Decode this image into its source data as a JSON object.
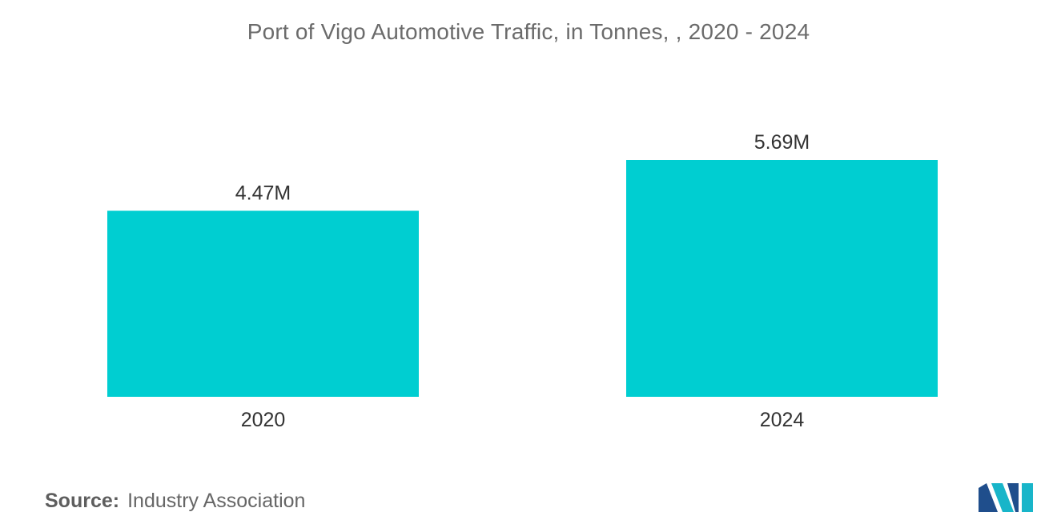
{
  "chart_data": {
    "type": "bar",
    "title": "Port of Vigo Automotive Traffic, in Tonnes, , 2020 - 2024",
    "categories": [
      "2020",
      "2024"
    ],
    "values": [
      4.47,
      5.69
    ],
    "value_labels": [
      "4.47M",
      "5.69M"
    ],
    "unit": "M",
    "xlabel": "",
    "ylabel": "",
    "ylim": [
      0,
      5.69
    ],
    "grid": false,
    "legend": "none",
    "bar_color": "#00CED1"
  },
  "source": {
    "prefix": "Source:",
    "text": "Industry Association"
  },
  "logo": {
    "icon": "mordor-intelligence-logo-icon",
    "colors": [
      "#1f4e8c",
      "#18b5c9"
    ]
  }
}
